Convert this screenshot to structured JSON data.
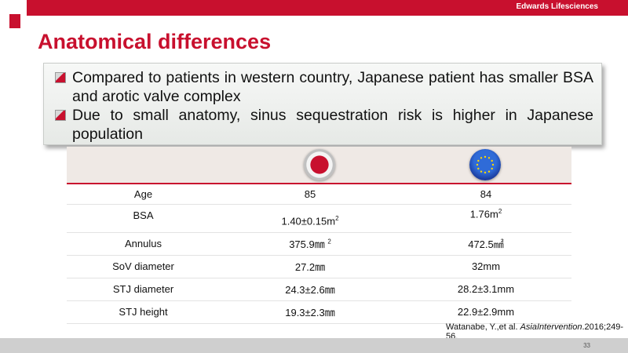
{
  "header": {
    "brand": "Edwards Lifesciences",
    "title": "Anatomical differences",
    "brand_color": "#c8102e"
  },
  "callout": {
    "bullets": [
      "Compared to patients in western country, Japanese patient has smaller BSA and arotic valve complex",
      "Due to small anatomy, sinus sequestration risk is higher in Japanese population"
    ],
    "bullet_icon": "square-bullet-icon"
  },
  "flags": {
    "left": "japan-flag-icon",
    "right": "eu-flag-icon"
  },
  "table": {
    "rows": [
      {
        "label": "Age",
        "jp": "85",
        "eu": "84"
      },
      {
        "label": "BSA",
        "jp": "1.40±0.15m",
        "jp_sup": "2",
        "eu": "1.76m",
        "eu_sup": "2"
      },
      {
        "label": "Annulus",
        "jp": "375.9㎜",
        "jp_sup": "2",
        "eu": "472.5㎟"
      },
      {
        "label": "SoV diameter",
        "jp": "27.2㎜",
        "eu": "32mm"
      },
      {
        "label": "STJ diameter",
        "jp": "24.3±2.6㎜",
        "eu": "28.2±3.1mm"
      },
      {
        "label": "STJ height",
        "jp": "19.3±2.3㎜",
        "eu": "22.9±2.9mm"
      }
    ]
  },
  "citation": {
    "prefix": "Watanabe, Y.,et al. ",
    "journal": "AsiaIntervention",
    "suffix": ".2016;249-56."
  },
  "footer": {
    "page_number": "33"
  }
}
